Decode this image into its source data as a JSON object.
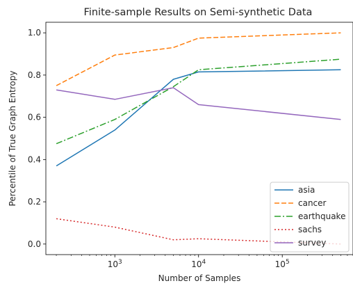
{
  "chart_data": {
    "type": "line",
    "title": "Finite-sample Results on Semi-synthetic Data",
    "xlabel": "Number of Samples",
    "ylabel": "Percentile of True Graph Entropy",
    "xscale": "log",
    "xlim": [
      150,
      700000
    ],
    "ylim": [
      -0.05,
      1.05
    ],
    "yticks": [
      0.0,
      0.2,
      0.4,
      0.6,
      0.8,
      1.0
    ],
    "ytick_labels": [
      "0.0",
      "0.2",
      "0.4",
      "0.6",
      "0.8",
      "1.0"
    ],
    "xticks": [
      1000,
      10000,
      100000
    ],
    "xtick_labels": [
      "10^3",
      "10^4",
      "10^5"
    ],
    "x": [
      200,
      1000,
      5000,
      10000,
      500000
    ],
    "series": [
      {
        "name": "asia",
        "color": "#1f77b4",
        "dash": "solid",
        "values": [
          0.37,
          0.54,
          0.78,
          0.815,
          0.825
        ]
      },
      {
        "name": "cancer",
        "color": "#ff7f0e",
        "dash": "dashed",
        "values": [
          0.75,
          0.895,
          0.93,
          0.975,
          1.0
        ]
      },
      {
        "name": "earthquake",
        "color": "#2ca02c",
        "dash": "dashdot",
        "values": [
          0.475,
          0.59,
          0.745,
          0.825,
          0.875
        ]
      },
      {
        "name": "sachs",
        "color": "#d62728",
        "dash": "dotted",
        "values": [
          0.12,
          0.08,
          0.02,
          0.025,
          0.0
        ]
      },
      {
        "name": "survey",
        "color": "#9467bd",
        "dash": "solid",
        "values": [
          0.73,
          0.685,
          0.74,
          0.66,
          0.59
        ]
      }
    ],
    "grid": false,
    "legend": "lower-right"
  }
}
